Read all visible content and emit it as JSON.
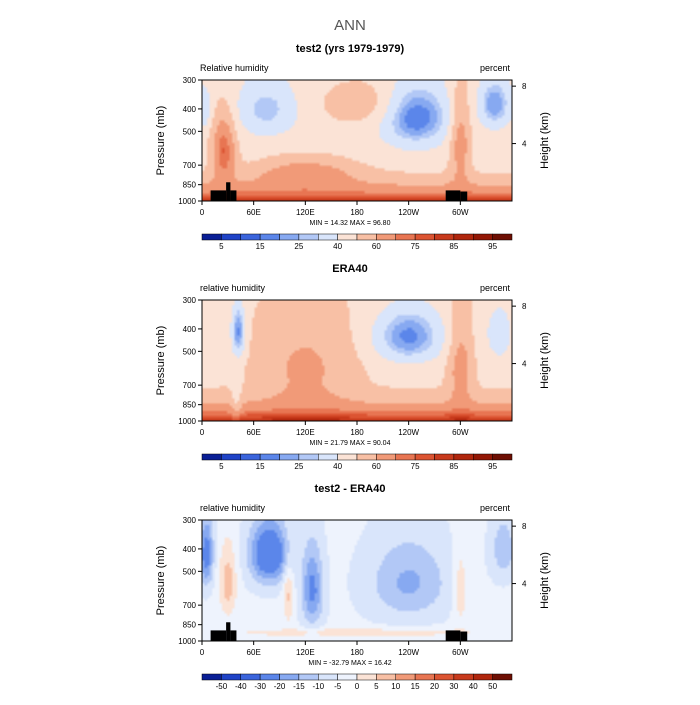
{
  "title": "ANN",
  "chart_data": [
    {
      "type": "heatmap",
      "title": "test2 (yrs 1979-1979)",
      "left_label": "Relative humidity",
      "right_label": "percent",
      "xlabel": "",
      "ylabel": "Pressure (mb)",
      "ylabel_right": "Height (km)",
      "x_ticks": [
        "0",
        "60E",
        "120E",
        "180",
        "120W",
        "60W"
      ],
      "x_tick_values": [
        0,
        60,
        120,
        180,
        240,
        300
      ],
      "xlim": [
        0,
        360
      ],
      "y_ticks": [
        "300",
        "400",
        "500",
        "700",
        "850",
        "1000"
      ],
      "y_tick_values": [
        300,
        400,
        500,
        700,
        850,
        1000
      ],
      "ylim": [
        1000,
        300
      ],
      "y_scale": "log",
      "right_ticks": [
        "8",
        "4"
      ],
      "right_tick_values": [
        8,
        4
      ],
      "min_max_text": "MIN =   14.32   MAX =   96.80",
      "min": 14.32,
      "max": 96.8,
      "colorbar_labels": [
        "5",
        "15",
        "25",
        "40",
        "60",
        "75",
        "85",
        "95"
      ],
      "colorbar_levels": [
        5,
        10,
        15,
        20,
        25,
        30,
        40,
        50,
        60,
        70,
        75,
        80,
        85,
        90,
        95
      ],
      "colorbar_colors": [
        "#0a1f96",
        "#1f43c7",
        "#3a64dc",
        "#5b86ea",
        "#87a9f1",
        "#b2c8f6",
        "#d9e5fb",
        "#fbe3d6",
        "#f8c0a5",
        "#f19a78",
        "#e87552",
        "#dc5432",
        "#c83a1c",
        "#b0260d",
        "#931705",
        "#6e0f03"
      ],
      "layout": "annual mean zonal cross section of relative humidity"
    },
    {
      "type": "heatmap",
      "title": "ERA40",
      "left_label": "relative humidity",
      "right_label": "percent",
      "xlabel": "",
      "ylabel": "Pressure (mb)",
      "ylabel_right": "Height (km)",
      "x_ticks": [
        "0",
        "60E",
        "120E",
        "180",
        "120W",
        "60W"
      ],
      "x_tick_values": [
        0,
        60,
        120,
        180,
        240,
        300
      ],
      "xlim": [
        0,
        360
      ],
      "y_ticks": [
        "300",
        "400",
        "500",
        "700",
        "850",
        "1000"
      ],
      "y_tick_values": [
        300,
        400,
        500,
        700,
        850,
        1000
      ],
      "ylim": [
        1000,
        300
      ],
      "y_scale": "log",
      "right_ticks": [
        "8",
        "4"
      ],
      "right_tick_values": [
        8,
        4
      ],
      "min_max_text": "MIN =   21.79   MAX =   90.04",
      "min": 21.79,
      "max": 90.04,
      "colorbar_labels": [
        "5",
        "15",
        "25",
        "40",
        "60",
        "75",
        "85",
        "95"
      ],
      "colorbar_levels": [
        5,
        10,
        15,
        20,
        25,
        30,
        40,
        50,
        60,
        70,
        75,
        80,
        85,
        90,
        95
      ],
      "colorbar_colors": [
        "#0a1f96",
        "#1f43c7",
        "#3a64dc",
        "#5b86ea",
        "#87a9f1",
        "#b2c8f6",
        "#d9e5fb",
        "#fbe3d6",
        "#f8c0a5",
        "#f19a78",
        "#e87552",
        "#dc5432",
        "#c83a1c",
        "#b0260d",
        "#931705",
        "#6e0f03"
      ]
    },
    {
      "type": "heatmap",
      "title": "test2 - ERA40",
      "left_label": "relative humidity",
      "right_label": "percent",
      "xlabel": "",
      "ylabel": "Pressure (mb)",
      "ylabel_right": "Height (km)",
      "x_ticks": [
        "0",
        "60E",
        "120E",
        "180",
        "120W",
        "60W"
      ],
      "x_tick_values": [
        0,
        60,
        120,
        180,
        240,
        300
      ],
      "xlim": [
        0,
        360
      ],
      "y_ticks": [
        "300",
        "400",
        "500",
        "700",
        "850",
        "1000"
      ],
      "y_tick_values": [
        300,
        400,
        500,
        700,
        850,
        1000
      ],
      "ylim": [
        1000,
        300
      ],
      "y_scale": "log",
      "right_ticks": [
        "8",
        "4"
      ],
      "right_tick_values": [
        8,
        4
      ],
      "min_max_text": "MIN =  -32.79   MAX =   16.42",
      "min": -32.79,
      "max": 16.42,
      "colorbar_labels": [
        "-50",
        "-40",
        "-30",
        "-20",
        "-15",
        "-10",
        "-5",
        "0",
        "5",
        "10",
        "15",
        "20",
        "30",
        "40",
        "50"
      ],
      "colorbar_levels": [
        -50,
        -40,
        -30,
        -20,
        -15,
        -10,
        -5,
        0,
        5,
        10,
        15,
        20,
        30,
        40,
        50
      ],
      "colorbar_colors": [
        "#0a1f96",
        "#1f43c7",
        "#3a64dc",
        "#5b86ea",
        "#87a9f1",
        "#b2c8f6",
        "#d9e5fb",
        "#eef3fd",
        "#fbe3d6",
        "#f8c0a5",
        "#f19a78",
        "#e87552",
        "#dc5432",
        "#c83a1c",
        "#b0260d",
        "#6e0f03"
      ]
    }
  ]
}
